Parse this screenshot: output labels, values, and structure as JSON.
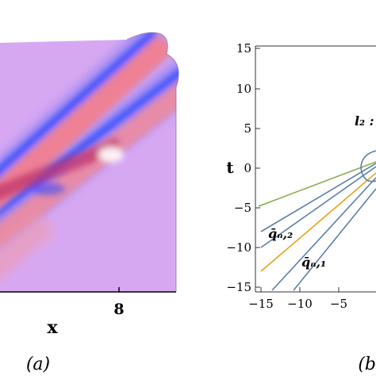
{
  "panel_a": {
    "x_label": "x",
    "tick_label": "8",
    "caption": "(a)"
  },
  "panel_b": {
    "x_ticks": [
      "−15",
      "−10",
      "−5"
    ],
    "y_ticks": [
      "15",
      "10",
      "5",
      "0",
      "−5",
      "−10",
      "−15"
    ],
    "y_label": "t",
    "caption": "(b",
    "annotation_l2": "l₂ : -",
    "label_q_n2": "q̄ₙ,₂",
    "label_q_n1": "q̄ₙ,₁",
    "colors": {
      "contour_blue": "#5b7fa8",
      "orange_line": "#e3a21a",
      "green_line": "#8aab4c"
    }
  }
}
